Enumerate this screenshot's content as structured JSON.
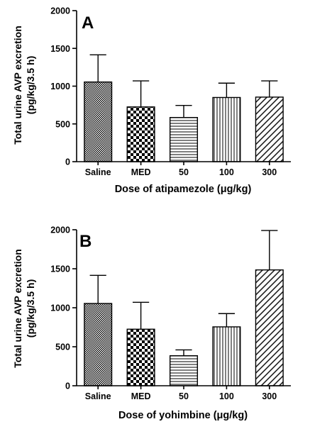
{
  "chart_data": [
    {
      "type": "bar",
      "panel_label": "A",
      "categories": [
        "Saline",
        "MED",
        "50",
        "100",
        "300"
      ],
      "values": [
        1055,
        725,
        585,
        850,
        855
      ],
      "error_upper": [
        1415,
        1070,
        745,
        1040,
        1070
      ],
      "patterns": [
        "dense-dots",
        "checker",
        "horizontal-lines",
        "vertical-lines",
        "diagonal-lines"
      ],
      "ylim": [
        0,
        2000
      ],
      "yticks": [
        "0",
        "500",
        "1000",
        "1500",
        "2000"
      ],
      "ylabel_line1": "Total urine AVP excretion",
      "ylabel_line2": "(pg/kg/3.5 h)",
      "xlabel": "Dose of atipamezole (μg/kg)",
      "grid": false
    },
    {
      "type": "bar",
      "panel_label": "B",
      "categories": [
        "Saline",
        "MED",
        "50",
        "100",
        "300"
      ],
      "values": [
        1055,
        725,
        385,
        755,
        1485
      ],
      "error_upper": [
        1415,
        1070,
        460,
        925,
        1990
      ],
      "patterns": [
        "dense-dots",
        "checker",
        "horizontal-lines",
        "vertical-lines",
        "diagonal-lines"
      ],
      "ylim": [
        0,
        2000
      ],
      "yticks": [
        "0",
        "500",
        "1000",
        "1500",
        "2000"
      ],
      "ylabel_line1": "Total urine AVP excretion",
      "ylabel_line2": "(pg/kg/3.5 h)",
      "xlabel": "Dose of yohimbine (μg/kg)",
      "grid": false
    }
  ]
}
